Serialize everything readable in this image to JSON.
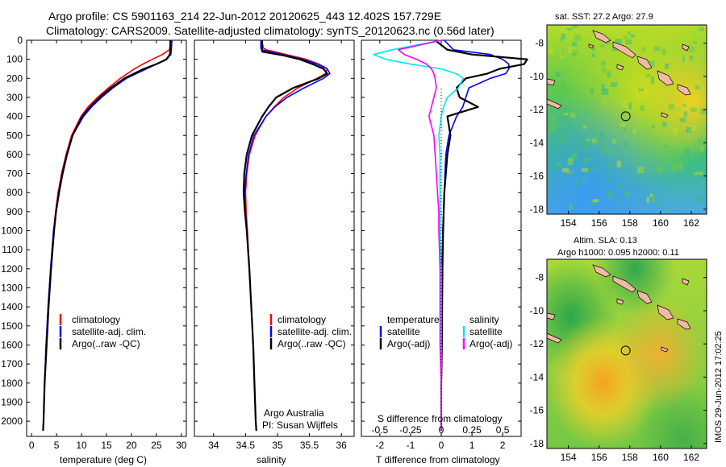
{
  "titles": {
    "line1": "Argo profile: CS 5901163_214 22-Jun-2012 20120625_443 12.402S 157.729E",
    "line2": "Climatology: CARS2009. Satellite-adjusted climatology: synTS_20120623.nc (0.56d later)"
  },
  "colors": {
    "climatology": "#ff0000",
    "satellite": "#0000ff",
    "argo": "#000000",
    "sal_satellite": "#00e5ee",
    "sal_argo": "#ff00ff"
  },
  "side_text": "IMOS 29-Jun-2012 17:02:25",
  "chart_data": [
    {
      "type": "line",
      "name": "temperature-panel",
      "xlabel": "temperature (deg C)",
      "ylabel": "",
      "xlim": [
        -1,
        31
      ],
      "ylim": [
        2080,
        0
      ],
      "xticks": [
        "0",
        "5",
        "10",
        "15",
        "20",
        "25",
        "30"
      ],
      "yticks": [
        "0",
        "100",
        "200",
        "300",
        "400",
        "500",
        "600",
        "700",
        "800",
        "900",
        "1000",
        "1100",
        "1200",
        "1300",
        "1400",
        "1500",
        "1600",
        "1700",
        "1800",
        "1900",
        "2000"
      ],
      "legend": [
        "climatology",
        "satellite-adj. clim.",
        "Argo(..raw -QC)"
      ],
      "depth": [
        0,
        50,
        75,
        100,
        125,
        150,
        200,
        250,
        300,
        350,
        400,
        500,
        600,
        700,
        800,
        900,
        1000,
        1200,
        1400,
        1600,
        1800,
        2000,
        2050
      ],
      "series": [
        {
          "name": "climatology",
          "values": [
            28.0,
            27.6,
            26.2,
            24.2,
            22.3,
            20.6,
            17.8,
            15.4,
            13.2,
            11.3,
            9.9,
            8.0,
            6.9,
            6.0,
            5.3,
            4.8,
            4.4,
            3.8,
            3.3,
            2.9,
            2.6,
            2.4,
            2.3
          ]
        },
        {
          "name": "satellite-adj. clim.",
          "values": [
            28.1,
            28.0,
            27.9,
            27.0,
            25.0,
            23.0,
            19.0,
            16.3,
            14.0,
            12.0,
            10.4,
            8.2,
            7.0,
            6.1,
            5.4,
            4.9,
            4.4,
            3.8,
            3.3,
            2.9,
            2.6,
            2.4,
            2.3
          ]
        },
        {
          "name": "Argo(..raw -QC)",
          "values": [
            27.8,
            27.8,
            27.7,
            27.0,
            25.0,
            22.5,
            18.6,
            15.9,
            13.6,
            11.7,
            10.1,
            8.2,
            7.1,
            6.2,
            5.5,
            4.9,
            4.5,
            3.9,
            3.4,
            3.0,
            2.6,
            2.4,
            2.3
          ]
        }
      ]
    },
    {
      "type": "line",
      "name": "salinity-panel",
      "xlabel": "salinity",
      "xlim": [
        33.7,
        36.2
      ],
      "ylim": [
        2080,
        0
      ],
      "xticks": [
        "34",
        "34.5",
        "35",
        "35.5",
        "36"
      ],
      "legend": [
        "climatology",
        "satellite-adj. clim.",
        "Argo(..raw -QC)"
      ],
      "annotation": [
        "Argo Australia",
        "PI: Susan Wijffels"
      ],
      "depth": [
        0,
        40,
        50,
        60,
        80,
        100,
        125,
        150,
        175,
        200,
        250,
        300,
        350,
        400,
        500,
        600,
        700,
        800,
        900,
        1000,
        1200,
        1400,
        1600,
        1800,
        2000,
        2050
      ],
      "series": [
        {
          "name": "climatology",
          "values": [
            34.75,
            34.78,
            34.82,
            34.95,
            35.2,
            35.45,
            35.65,
            35.78,
            35.75,
            35.62,
            35.32,
            35.1,
            34.95,
            34.82,
            34.65,
            34.56,
            34.52,
            34.5,
            34.51,
            34.53,
            34.56,
            34.59,
            34.62,
            34.64,
            34.66,
            34.67
          ]
        },
        {
          "name": "satellite-adj. clim.",
          "values": [
            34.74,
            34.74,
            34.75,
            34.88,
            35.15,
            35.4,
            35.62,
            35.78,
            35.82,
            35.72,
            35.42,
            35.15,
            34.96,
            34.82,
            34.63,
            34.55,
            34.51,
            34.49,
            34.5,
            34.52,
            34.56,
            34.59,
            34.62,
            34.64,
            34.66,
            34.67
          ]
        },
        {
          "name": "Argo(..raw -QC)",
          "values": [
            34.76,
            34.76,
            34.76,
            34.76,
            35.1,
            35.35,
            35.55,
            35.72,
            35.78,
            35.65,
            35.25,
            34.98,
            34.86,
            34.76,
            34.6,
            34.52,
            34.48,
            34.47,
            34.49,
            34.52,
            34.56,
            34.59,
            34.62,
            34.64,
            34.66,
            34.67
          ]
        }
      ]
    },
    {
      "type": "line",
      "name": "difference-panel",
      "xlabel": "T difference from climatology",
      "top_label": "S difference from climatology",
      "xlim": [
        -2.6,
        2.6
      ],
      "ylim": [
        2080,
        0
      ],
      "xticks": [
        "-2",
        "-1",
        "0",
        "1",
        "2"
      ],
      "sticks": [
        "-0.5",
        "-0.25",
        "0",
        "0.25",
        "0.5"
      ],
      "legend_temperature": {
        "header": "temperature",
        "entries": [
          "satellite",
          "Argo(-adj)"
        ]
      },
      "legend_salinity": {
        "header": "salinity",
        "entries": [
          "satellite",
          "Argo(-adj)"
        ]
      },
      "depth": [
        0,
        50,
        75,
        100,
        125,
        150,
        175,
        200,
        250,
        300,
        350,
        400,
        500,
        600,
        700,
        800,
        900,
        1000,
        1200,
        1400,
        1600,
        1800,
        2000,
        2050
      ],
      "series": [
        {
          "name": "temperature satellite",
          "values": [
            0.1,
            0.4,
            1.6,
            2.0,
            2.2,
            2.2,
            2.1,
            1.6,
            0.9,
            0.8,
            0.7,
            0.5,
            0.25,
            0.15,
            0.12,
            0.1,
            0.08,
            0.05,
            0.03,
            0.02,
            0.01,
            0.0,
            0.0,
            0.0
          ]
        },
        {
          "name": "temperature Argo(-adj)",
          "values": [
            -0.2,
            0.2,
            1.0,
            2.8,
            2.7,
            1.9,
            1.5,
            0.8,
            0.5,
            0.6,
            1.2,
            0.2,
            0.3,
            0.2,
            0.15,
            0.1,
            0.08,
            0.06,
            0.04,
            0.03,
            0.02,
            0.0,
            0.0,
            0.0
          ]
        },
        {
          "name": "salinity satellite",
          "values": [
            0.0,
            -0.4,
            -0.55,
            -0.45,
            -0.25,
            0.0,
            0.12,
            0.18,
            0.14,
            0.05,
            0.02,
            0.0,
            -0.02,
            -0.01,
            -0.01,
            -0.01,
            -0.01,
            -0.01,
            0.0,
            0.0,
            0.0,
            0.0,
            0.0,
            0.0
          ]
        },
        {
          "name": "salinity Argo(-adj)",
          "values": [
            0.0,
            -0.35,
            -0.3,
            -0.2,
            -0.12,
            -0.08,
            -0.06,
            -0.05,
            -0.04,
            -0.06,
            -0.08,
            -0.1,
            -0.06,
            -0.05,
            -0.04,
            -0.03,
            -0.02,
            -0.02,
            -0.01,
            -0.01,
            -0.01,
            0.0,
            0.0,
            0.0
          ]
        }
      ]
    },
    {
      "type": "heatmap",
      "name": "sst-map",
      "title": "sat. SST: 27.2 Argo: 27.9",
      "xticks": [
        "154",
        "156",
        "158",
        "160",
        "162"
      ],
      "yticks": [
        "-8",
        "-10",
        "-12",
        "-14",
        "-16",
        "-18"
      ],
      "xlim": [
        152.6,
        163.0
      ],
      "ylim": [
        -18.3,
        -6.9
      ],
      "argo_position": [
        157.729,
        -12.402
      ]
    },
    {
      "type": "heatmap",
      "name": "sla-map",
      "title": "Altim. SLA: 0.13",
      "subtitle": "Argo h1000: 0.095 h2000: 0.11",
      "xticks": [
        "154",
        "156",
        "158",
        "160",
        "162"
      ],
      "yticks": [
        "-8",
        "-10",
        "-12",
        "-14",
        "-16",
        "-18"
      ],
      "xlim": [
        152.6,
        163.0
      ],
      "ylim": [
        -18.3,
        -6.9
      ],
      "argo_position": [
        157.729,
        -12.402
      ]
    }
  ]
}
